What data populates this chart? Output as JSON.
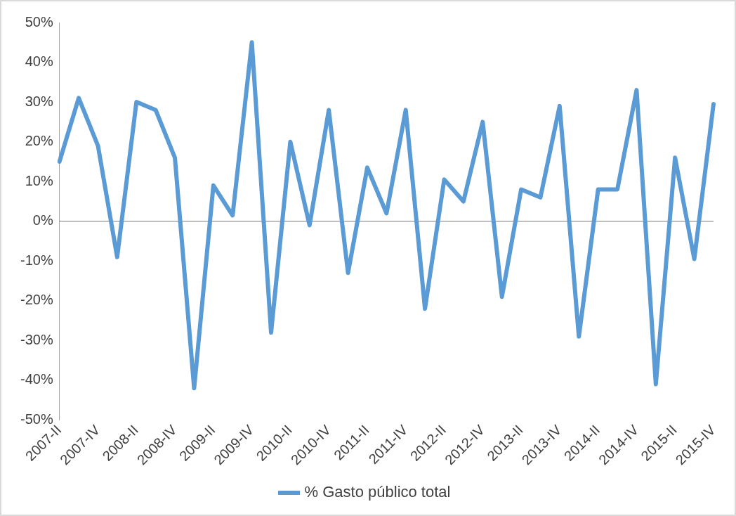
{
  "chart_data": {
    "type": "line",
    "categories": [
      "2007-II",
      null,
      "2007-IV",
      null,
      "2008-II",
      null,
      "2008-IV",
      null,
      "2009-II",
      null,
      "2009-IV",
      null,
      "2010-II",
      null,
      "2010-IV",
      null,
      "2011-II",
      null,
      "2011-IV",
      null,
      "2012-II",
      null,
      "2012-IV",
      null,
      "2013-II",
      null,
      "2013-IV",
      null,
      "2014-II",
      null,
      "2014-IV",
      null,
      "2015-II",
      null,
      "2015-IV"
    ],
    "series": [
      {
        "name": "% Gasto público total",
        "color": "#5b9bd5",
        "values": [
          15,
          31,
          19,
          -9,
          30,
          28,
          16,
          -42,
          9,
          1.5,
          45,
          -28,
          20,
          -1,
          28,
          -13,
          13.5,
          2,
          28,
          -22,
          10.5,
          5,
          25,
          -19,
          8,
          6,
          29,
          -29,
          8,
          8,
          33,
          -41,
          16,
          -9.5,
          29.5
        ]
      }
    ],
    "ylim": [
      -50,
      50
    ],
    "yticks": [
      {
        "value": -50,
        "label": "-50%"
      },
      {
        "value": -40,
        "label": "-40%"
      },
      {
        "value": -30,
        "label": "-30%"
      },
      {
        "value": -20,
        "label": "-20%"
      },
      {
        "value": -10,
        "label": "-10%"
      },
      {
        "value": 0,
        "label": "0%"
      },
      {
        "value": 10,
        "label": "10%"
      },
      {
        "value": 20,
        "label": "20%"
      },
      {
        "value": 30,
        "label": "30%"
      },
      {
        "value": 40,
        "label": "40%"
      },
      {
        "value": 50,
        "label": "50%"
      }
    ],
    "ref_lines": [
      {
        "axis": "y",
        "value": 0,
        "color": "#a6a6a6"
      }
    ],
    "grid": false,
    "legend": "bottom",
    "marker": "none",
    "line_style": "solid"
  }
}
